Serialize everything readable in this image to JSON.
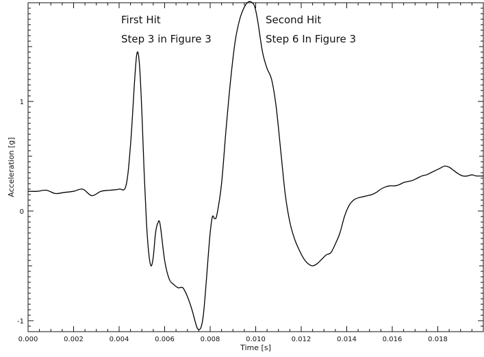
{
  "chart_data": {
    "type": "line",
    "title": "",
    "xlabel": "Time  [s]",
    "ylabel": "Acceleration  [g]",
    "xlim": [
      0,
      0.02
    ],
    "ylim": [
      -1.1,
      1.9
    ],
    "grid": false,
    "legend": "none",
    "x_ticks": [
      {
        "value": 0.0,
        "label": "0.000"
      },
      {
        "value": 0.002,
        "label": "0.002"
      },
      {
        "value": 0.004,
        "label": "0.004"
      },
      {
        "value": 0.006,
        "label": "0.006"
      },
      {
        "value": 0.008,
        "label": "0.008"
      },
      {
        "value": 0.01,
        "label": "0.010"
      },
      {
        "value": 0.012,
        "label": "0.012"
      },
      {
        "value": 0.014,
        "label": "0.014"
      },
      {
        "value": 0.016,
        "label": "0.016"
      },
      {
        "value": 0.018,
        "label": "0.018"
      }
    ],
    "y_ticks": [
      {
        "value": 1,
        "label": "1"
      },
      {
        "value": 0,
        "label": "0"
      },
      {
        "value": -1,
        "label": "-1"
      }
    ],
    "annotations": [
      {
        "id": "first-hit",
        "lines": [
          "First Hit",
          "Step 3 in Figure 3"
        ]
      },
      {
        "id": "second-hit",
        "lines": [
          "Second Hit",
          "Step 6 In Figure 3"
        ]
      }
    ],
    "series": [
      {
        "color": "#000000",
        "x": [
          0.0,
          0.0004,
          0.0008,
          0.0012,
          0.0016,
          0.002,
          0.0024,
          0.0028,
          0.0032,
          0.0036,
          0.004,
          0.0043,
          0.0045,
          0.0047,
          0.0048,
          0.0049,
          0.005,
          0.0051,
          0.0052,
          0.0053,
          0.0054,
          0.0055,
          0.0056,
          0.0057,
          0.0058,
          0.006,
          0.0062,
          0.0064,
          0.0066,
          0.0068,
          0.007,
          0.0072,
          0.0074,
          0.0075,
          0.0076,
          0.0077,
          0.0078,
          0.0079,
          0.008,
          0.0081,
          0.0082,
          0.0083,
          0.0085,
          0.0087,
          0.0089,
          0.0091,
          0.0093,
          0.0095,
          0.0097,
          0.0099,
          0.01,
          0.0101,
          0.0103,
          0.0105,
          0.0107,
          0.0109,
          0.0111,
          0.0113,
          0.0115,
          0.0117,
          0.0119,
          0.0121,
          0.0123,
          0.0125,
          0.0127,
          0.0129,
          0.0131,
          0.0133,
          0.0135,
          0.0137,
          0.0139,
          0.0141,
          0.0143,
          0.0145,
          0.0147,
          0.0149,
          0.0151,
          0.0153,
          0.0155,
          0.0157,
          0.0159,
          0.0161,
          0.0163,
          0.0165,
          0.0167,
          0.0169,
          0.0171,
          0.0173,
          0.0175,
          0.0177,
          0.0179,
          0.0181,
          0.0183,
          0.0185,
          0.0187,
          0.0189,
          0.0191,
          0.0193,
          0.0195,
          0.0197,
          0.02
        ],
        "y": [
          0.18,
          0.18,
          0.19,
          0.16,
          0.17,
          0.18,
          0.2,
          0.14,
          0.18,
          0.19,
          0.2,
          0.23,
          0.6,
          1.25,
          1.45,
          1.32,
          0.9,
          0.35,
          -0.1,
          -0.38,
          -0.5,
          -0.42,
          -0.2,
          -0.11,
          -0.12,
          -0.45,
          -0.62,
          -0.67,
          -0.7,
          -0.7,
          -0.78,
          -0.9,
          -1.05,
          -1.08,
          -1.06,
          -0.95,
          -0.72,
          -0.45,
          -0.2,
          -0.05,
          -0.07,
          -0.03,
          0.25,
          0.75,
          1.2,
          1.55,
          1.75,
          1.86,
          1.91,
          1.89,
          1.83,
          1.72,
          1.45,
          1.3,
          1.2,
          0.95,
          0.55,
          0.15,
          -0.1,
          -0.25,
          -0.35,
          -0.43,
          -0.48,
          -0.5,
          -0.48,
          -0.44,
          -0.4,
          -0.38,
          -0.3,
          -0.2,
          -0.05,
          0.05,
          0.1,
          0.12,
          0.13,
          0.14,
          0.15,
          0.17,
          0.2,
          0.22,
          0.23,
          0.23,
          0.24,
          0.26,
          0.27,
          0.28,
          0.3,
          0.32,
          0.33,
          0.35,
          0.37,
          0.39,
          0.41,
          0.4,
          0.37,
          0.34,
          0.32,
          0.32,
          0.33,
          0.32,
          0.32
        ]
      }
    ]
  }
}
